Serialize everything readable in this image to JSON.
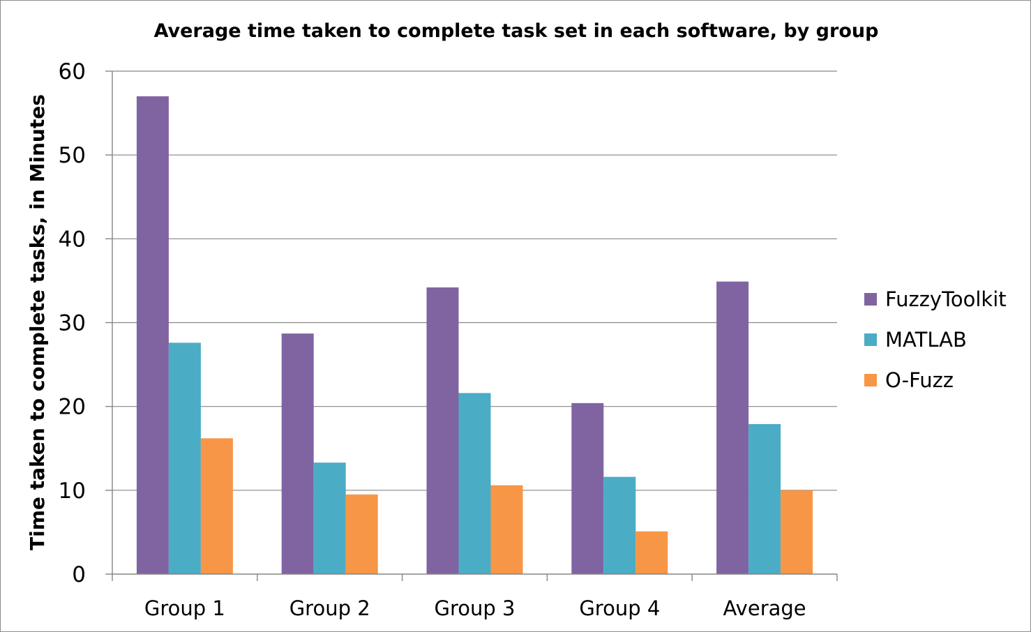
{
  "chart_data": {
    "type": "bar",
    "title": "Average time taken to complete task set in each software, by group",
    "xlabel": "",
    "ylabel": "Time taken to complete tasks, in Minutes",
    "ylim": [
      0,
      60
    ],
    "yticks": [
      "0",
      "10",
      "20",
      "30",
      "40",
      "50",
      "60"
    ],
    "categories": [
      "Group 1",
      "Group 2",
      "Group 3",
      "Group 4",
      "Average"
    ],
    "series": [
      {
        "name": "FuzzyToolkit",
        "color": "#8064A2",
        "values": [
          57,
          28.7,
          34.2,
          20.4,
          34.9
        ]
      },
      {
        "name": "MATLAB",
        "color": "#4BACC6",
        "values": [
          27.6,
          13.3,
          21.6,
          11.6,
          17.9
        ]
      },
      {
        "name": "O-Fuzz",
        "color": "#F79646",
        "values": [
          16.2,
          9.5,
          10.6,
          5.1,
          10
        ]
      }
    ],
    "grid": true,
    "legend": "right"
  }
}
